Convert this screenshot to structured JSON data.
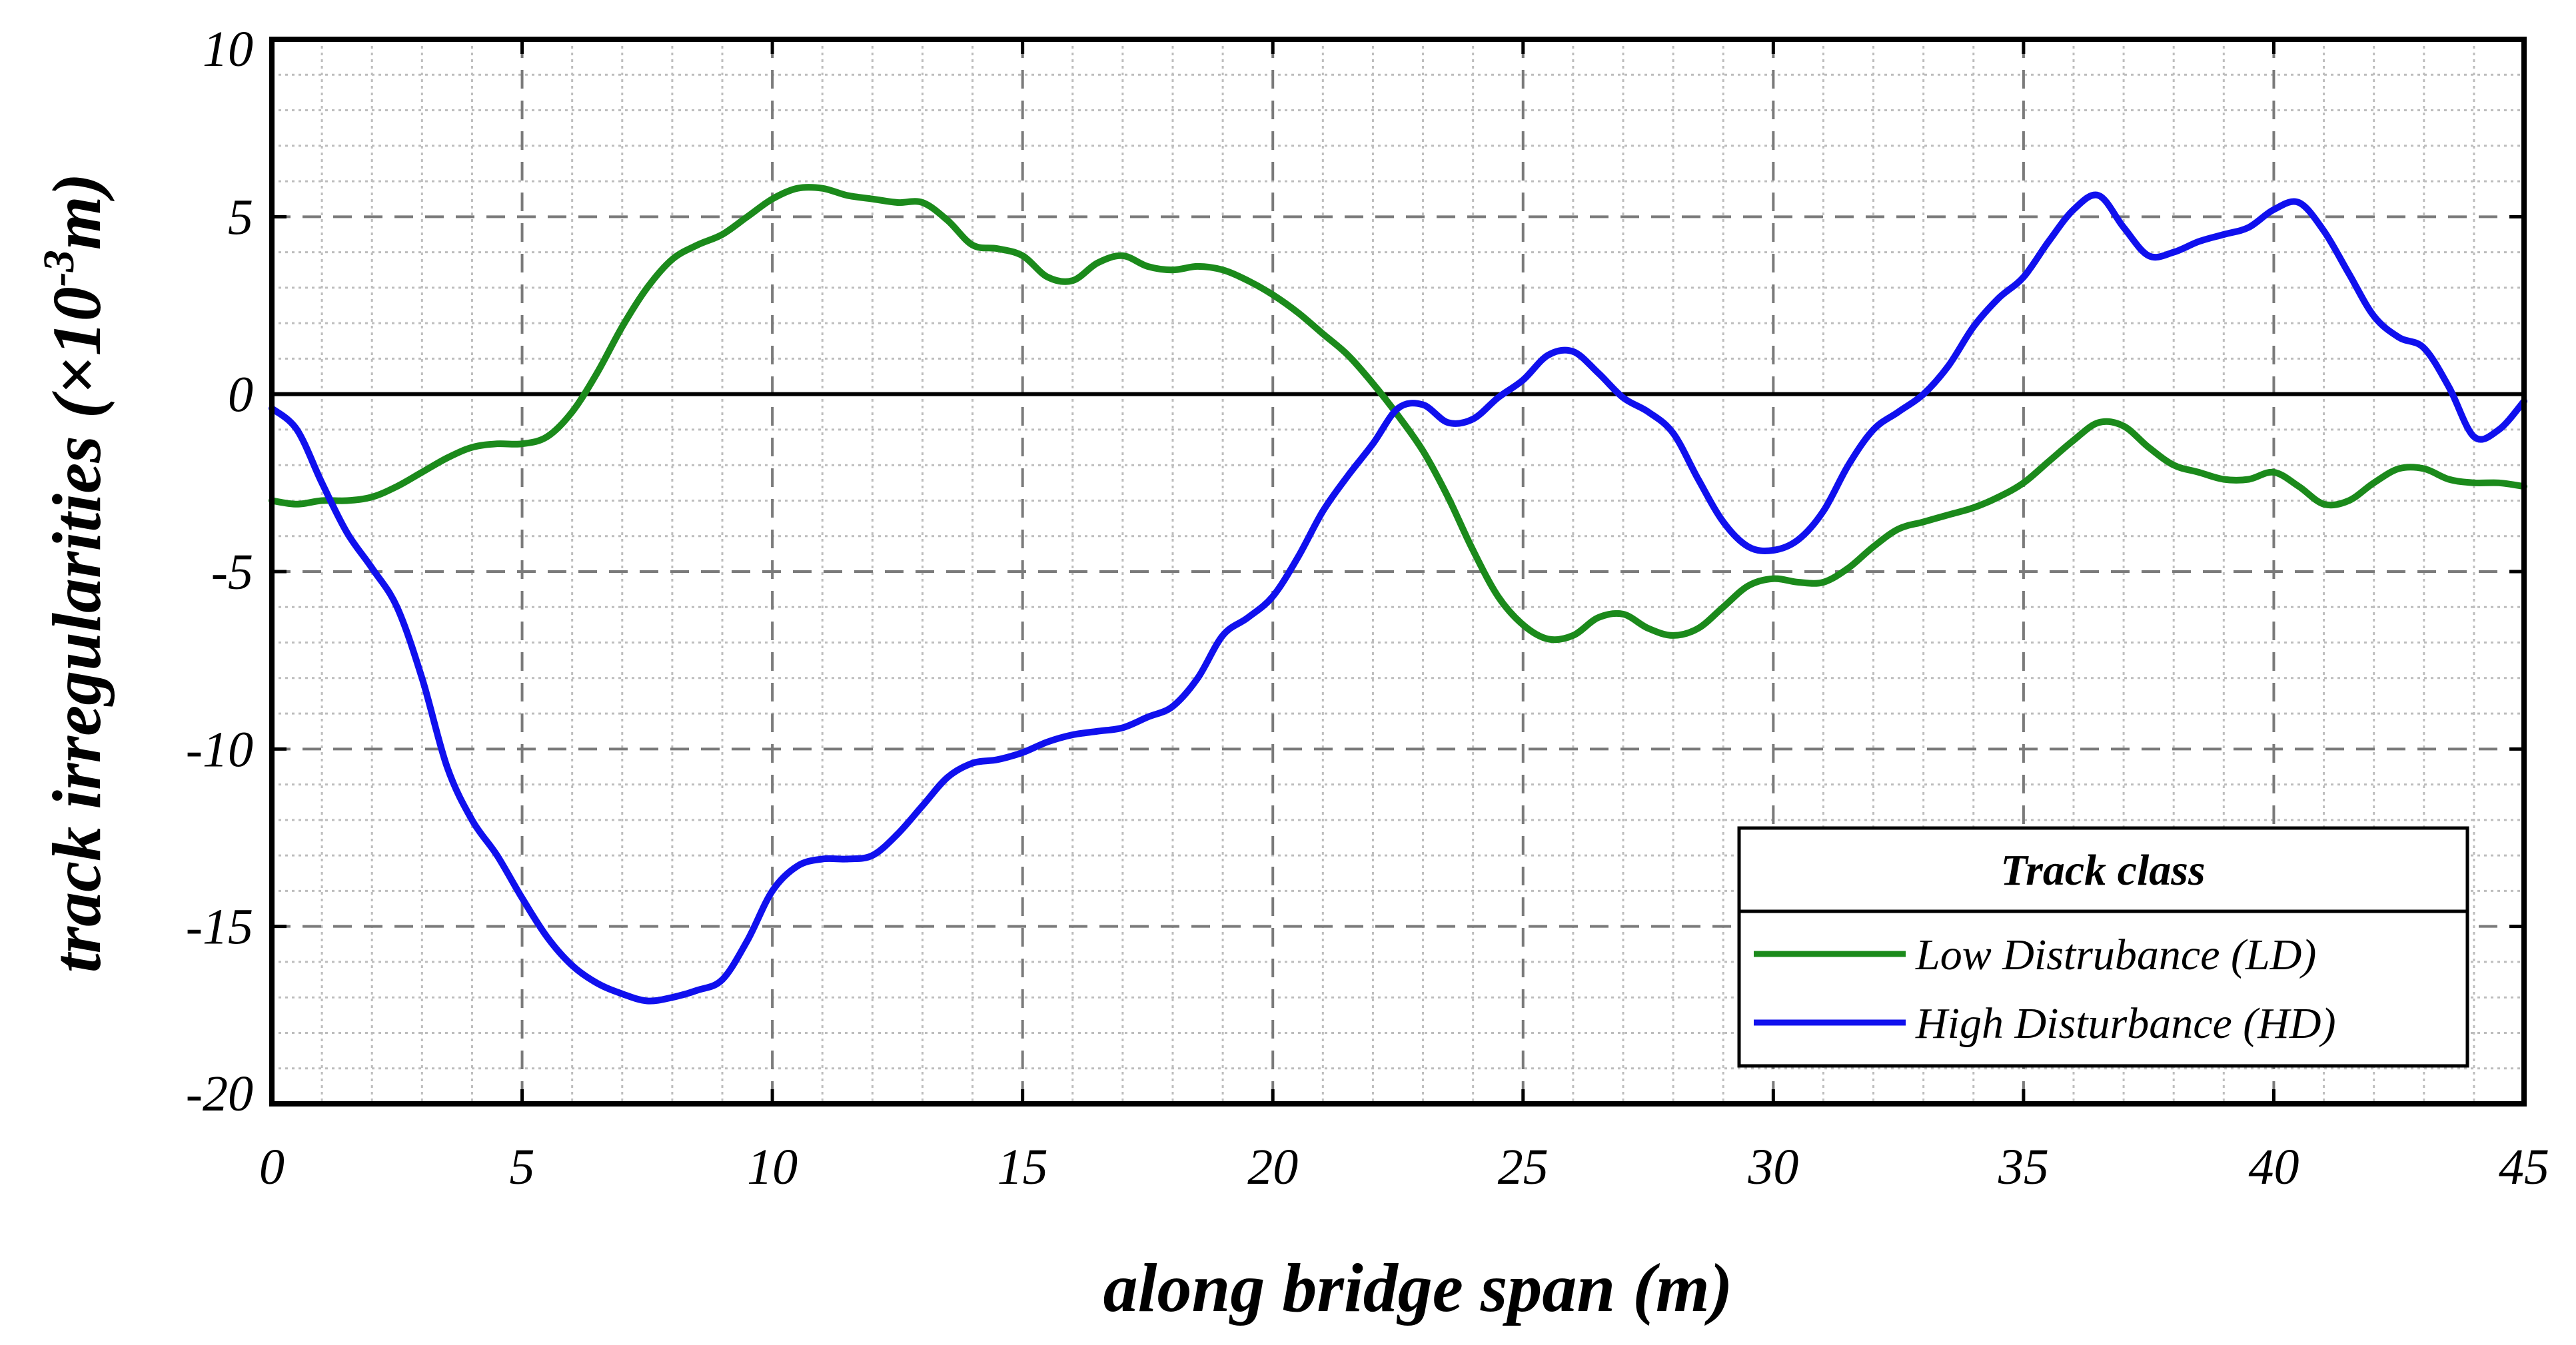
{
  "chart_data": {
    "type": "line",
    "xlabel": "along bridge span (m)",
    "ylabel_main": "track irregularities (",
    "ylabel_mult": "×10",
    "ylabel_exp": "-3",
    "ylabel_unit": "m)",
    "xlim": [
      0,
      45
    ],
    "ylim": [
      -20,
      10
    ],
    "xticks": [
      0,
      5,
      10,
      15,
      20,
      25,
      30,
      35,
      40,
      45
    ],
    "yticks": [
      10,
      5,
      0,
      -5,
      -10,
      -15,
      -20
    ],
    "xtick_labels": [
      "0",
      "5",
      "10",
      "15",
      "20",
      "25",
      "30",
      "35",
      "40",
      "45"
    ],
    "ytick_labels": [
      "10",
      "5",
      "0",
      "-5",
      "-10",
      "-15",
      "-20"
    ],
    "grid": true,
    "legend": {
      "title": "Track class",
      "placement": "bottom-right"
    },
    "series": [
      {
        "name": "Low Distrubance (LD)",
        "color": "#1b8a1b",
        "x": [
          0,
          0.5,
          1,
          1.5,
          2,
          2.5,
          3,
          3.5,
          4,
          4.5,
          5,
          5.5,
          6,
          6.5,
          7,
          7.5,
          8,
          8.5,
          9,
          9.5,
          10,
          10.5,
          11,
          11.5,
          12,
          12.5,
          13,
          13.5,
          14,
          14.5,
          15,
          15.5,
          16,
          16.5,
          17,
          17.5,
          18,
          18.5,
          19,
          19.5,
          20,
          20.5,
          21,
          21.5,
          22,
          22.5,
          23,
          23.5,
          24,
          24.5,
          25,
          25.5,
          26,
          26.5,
          27,
          27.5,
          28,
          28.5,
          29,
          29.5,
          30,
          30.5,
          31,
          31.5,
          32,
          32.5,
          33,
          33.5,
          34,
          34.5,
          35,
          35.5,
          36,
          36.5,
          37,
          37.5,
          38,
          38.5,
          39,
          39.5,
          40,
          40.5,
          41,
          41.5,
          42,
          42.5,
          43,
          43.5,
          44,
          44.5,
          45
        ],
        "y": [
          -3.0,
          -3.1,
          -3.0,
          -3.0,
          -2.9,
          -2.6,
          -2.2,
          -1.8,
          -1.5,
          -1.4,
          -1.4,
          -1.2,
          -0.5,
          0.6,
          1.9,
          3.0,
          3.8,
          4.2,
          4.5,
          5.0,
          5.5,
          5.8,
          5.8,
          5.6,
          5.5,
          5.4,
          5.4,
          4.9,
          4.2,
          4.1,
          3.9,
          3.3,
          3.2,
          3.7,
          3.9,
          3.6,
          3.5,
          3.6,
          3.5,
          3.2,
          2.8,
          2.3,
          1.7,
          1.1,
          0.3,
          -0.6,
          -1.6,
          -2.9,
          -4.4,
          -5.7,
          -6.5,
          -6.9,
          -6.8,
          -6.3,
          -6.2,
          -6.6,
          -6.8,
          -6.6,
          -6.0,
          -5.4,
          -5.2,
          -5.3,
          -5.3,
          -4.9,
          -4.3,
          -3.8,
          -3.6,
          -3.4,
          -3.2,
          -2.9,
          -2.5,
          -1.9,
          -1.3,
          -0.8,
          -0.9,
          -1.5,
          -2.0,
          -2.2,
          -2.4,
          -2.4,
          -2.2,
          -2.6,
          -3.1,
          -3.0,
          -2.5,
          -2.1,
          -2.1,
          -2.4,
          -2.5,
          -2.5,
          -2.6
        ]
      },
      {
        "name": "High Disturbance (HD)",
        "color": "#1010ee",
        "x": [
          0,
          0.5,
          1,
          1.5,
          2,
          2.5,
          3,
          3.5,
          4,
          4.5,
          5,
          5.5,
          6,
          6.5,
          7,
          7.5,
          8,
          8.5,
          9,
          9.5,
          10,
          10.5,
          11,
          11.5,
          12,
          12.5,
          13,
          13.5,
          14,
          14.5,
          15,
          15.5,
          16,
          16.5,
          17,
          17.5,
          18,
          18.5,
          19,
          19.5,
          20,
          20.5,
          21,
          21.5,
          22,
          22.5,
          23,
          23.5,
          24,
          24.5,
          25,
          25.5,
          26,
          26.5,
          27,
          27.5,
          28,
          28.5,
          29,
          29.5,
          30,
          30.5,
          31,
          31.5,
          32,
          32.5,
          33,
          33.5,
          34,
          34.5,
          35,
          35.5,
          36,
          36.5,
          37,
          37.5,
          38,
          38.5,
          39,
          39.5,
          40,
          40.5,
          41,
          41.5,
          42,
          42.5,
          43,
          43.5,
          44,
          44.5,
          45
        ],
        "y": [
          -0.4,
          -1.0,
          -2.5,
          -3.9,
          -4.9,
          -6.0,
          -8.0,
          -10.5,
          -12.0,
          -13.0,
          -14.2,
          -15.3,
          -16.1,
          -16.6,
          -16.9,
          -17.1,
          -17.0,
          -16.8,
          -16.5,
          -15.4,
          -14.0,
          -13.3,
          -13.1,
          -13.1,
          -13.0,
          -12.4,
          -11.6,
          -10.8,
          -10.4,
          -10.3,
          -10.1,
          -9.8,
          -9.6,
          -9.5,
          -9.4,
          -9.1,
          -8.8,
          -8.0,
          -6.8,
          -6.3,
          -5.7,
          -4.6,
          -3.3,
          -2.3,
          -1.4,
          -0.4,
          -0.3,
          -0.8,
          -0.7,
          -0.1,
          0.4,
          1.1,
          1.2,
          0.6,
          -0.1,
          -0.5,
          -1.1,
          -2.4,
          -3.6,
          -4.3,
          -4.4,
          -4.1,
          -3.3,
          -2.0,
          -1.0,
          -0.5,
          0.0,
          0.8,
          1.9,
          2.7,
          3.3,
          4.3,
          5.2,
          5.6,
          4.7,
          3.9,
          4.0,
          4.3,
          4.5,
          4.7,
          5.2,
          5.4,
          4.6,
          3.4,
          2.2,
          1.6,
          1.3,
          0.2,
          -1.2,
          -1.0,
          -0.2
        ]
      }
    ]
  }
}
